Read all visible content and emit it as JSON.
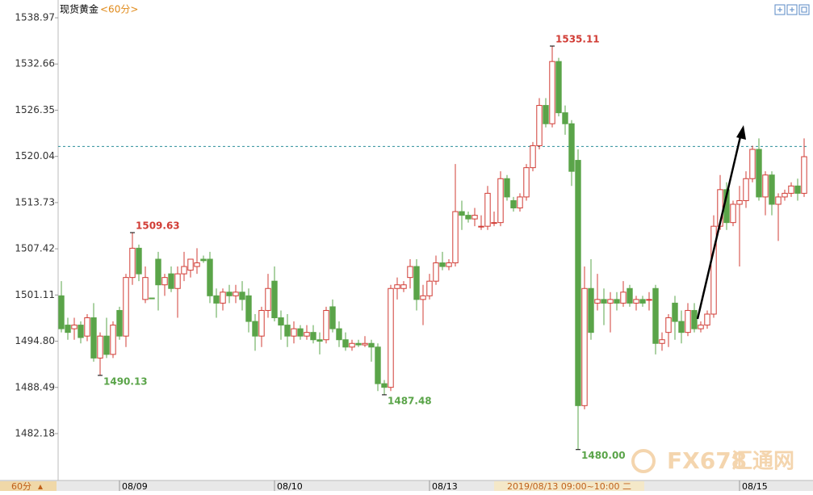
{
  "chart_data": {
    "type": "candlestick",
    "title": "现货黄金",
    "period": "<60分>",
    "period_button": "60分",
    "crosshair_label": "2019/08/13 09:00~10:00 二",
    "watermark": {
      "brand": "FX678",
      "name": "汇通网"
    },
    "up_color": "#d13c35",
    "down_color": "#5aa449",
    "grid": false,
    "ylim": [
      1475.78,
      1541.4
    ],
    "yticks": [
      1538.97,
      1532.66,
      1526.35,
      1520.04,
      1513.73,
      1507.42,
      1501.11,
      {
        "value": 1494.8,
        "label": "1494.80"
      },
      1488.49,
      1482.18
    ],
    "last_price": 1521.4,
    "annotations": [
      {
        "value": 1509.63,
        "label": "1509.63"
      },
      {
        "value": 1490.13,
        "label": "1490.13"
      },
      {
        "value": 1487.48,
        "label": "1487.48"
      },
      {
        "value": 1535.11,
        "label": "1535.11"
      },
      {
        "value": 1480,
        "label": "1480.00"
      }
    ],
    "categories": [
      null,
      null,
      null,
      null,
      null,
      null,
      null,
      null,
      null,
      null,
      null,
      "08/09",
      null,
      null,
      null,
      null,
      null,
      null,
      null,
      null,
      null,
      null,
      null,
      null,
      null,
      null,
      null,
      null,
      null,
      null,
      null,
      null,
      null,
      null,
      null,
      "08/10",
      null,
      null,
      null,
      null,
      null,
      null,
      null,
      null,
      null,
      null,
      null,
      null,
      null,
      null,
      null,
      null,
      null,
      null,
      null,
      null,
      null,
      null,
      null,
      "08/13",
      null,
      null,
      null,
      null,
      null,
      null,
      null,
      null,
      null,
      null,
      null,
      null,
      null,
      null,
      null,
      null,
      null,
      null,
      null,
      null,
      null,
      null,
      null,
      null,
      null,
      null,
      null,
      null,
      null,
      null,
      null,
      null,
      null,
      null,
      null,
      null,
      null,
      null,
      null,
      null,
      null,
      null,
      null,
      null,
      null,
      null,
      null,
      "08/15",
      null,
      null,
      null,
      null,
      null,
      null,
      null,
      null
    ],
    "open": [
      1501,
      1497,
      1496.5,
      1497,
      1495.5,
      1498,
      1492.5,
      1495.5,
      1493,
      1499,
      1495.5,
      1503.5,
      1507.5,
      1500.5,
      1500.7,
      1506,
      1502.5,
      1504,
      1502,
      1504,
      1504.5,
      1505,
      1506,
      1506,
      1501,
      1500,
      1501.5,
      1501,
      1501.5,
      1501,
      1497.5,
      1495.5,
      1499,
      1503,
      1498,
      1497,
      1495.5,
      1496.5,
      1495.5,
      1496,
      1495,
      1495,
      1499.5,
      1496.5,
      1495,
      1494,
      1494.5,
      1494.3,
      1494.5,
      1494,
      1489,
      1488.5,
      1502,
      1502,
      1503.5,
      1505,
      1500.5,
      1501,
      1503,
      1505.5,
      1505,
      1505.5,
      1512.5,
      1512,
      1511.5,
      1510.5,
      1510.5,
      1511,
      1511,
      1517,
      1514,
      1513,
      1514.5,
      1518.5,
      1521.5,
      1527,
      1524.5,
      1533,
      1526,
      1524.5,
      1519.5,
      1486,
      1502,
      1500,
      1500.5,
      1500,
      1500.5,
      1500,
      1502,
      1500,
      1500.5,
      1500.5,
      1502,
      1494.5,
      1496,
      1500,
      1497.5,
      1496,
      1499,
      1496.5,
      1497,
      1498.5,
      1510.5,
      1515.5,
      1511,
      1513.5,
      1514,
      1517,
      1521,
      1514.5,
      1517.5,
      1513.5,
      1514.5,
      1515,
      1516,
      1515
    ],
    "high": [
      1503,
      1498,
      1498,
      1497.5,
      1498.5,
      1500,
      1496,
      1498,
      1497.5,
      1499.5,
      1504,
      1509.63,
      1508,
      1505,
      1500.7,
      1507,
      1504,
      1505,
      1505,
      1507,
      1506,
      1507.5,
      1506.5,
      1507,
      1502,
      1502,
      1502.5,
      1502.5,
      1503,
      1502,
      1498.5,
      1499.5,
      1504,
      1505,
      1499,
      1498.5,
      1497.5,
      1497,
      1497,
      1497,
      1496,
      1499.5,
      1500.5,
      1497.5,
      1496,
      1495,
      1495,
      1495.5,
      1495,
      1494.5,
      1489.5,
      1502.5,
      1503.5,
      1503,
      1506,
      1506,
      1502.5,
      1504,
      1506.5,
      1507,
      1506,
      1519,
      1514,
      1512.5,
      1513,
      1512,
      1516,
      1512.5,
      1518,
      1517.5,
      1514.5,
      1515,
      1519,
      1522,
      1528,
      1528,
      1535.11,
      1533.5,
      1527,
      1525,
      1521,
      1505,
      1506,
      1504,
      1502,
      1501.5,
      1501.5,
      1503,
      1502.5,
      1501,
      1501,
      1501.5,
      1502.5,
      1496,
      1498.5,
      1501,
      1499,
      1500,
      1500,
      1497.5,
      1499,
      1512,
      1517.5,
      1516.5,
      1514,
      1516,
      1518,
      1521.5,
      1522.5,
      1518,
      1518,
      1515,
      1515.5,
      1516.5,
      1517,
      1522.5
    ],
    "low": [
      1496,
      1495,
      1495,
      1494.5,
      1494.8,
      1492,
      1490.13,
      1492.5,
      1492.5,
      1495,
      1494,
      1502.5,
      1503,
      1500,
      1500.6,
      1499,
      1501,
      1501.5,
      1498,
      1503,
      1503.5,
      1504,
      1505.5,
      1500,
      1498,
      1499,
      1500,
      1500,
      1499,
      1496,
      1493.5,
      1494,
      1498,
      1497.5,
      1495,
      1494,
      1494.5,
      1495,
      1495,
      1494.5,
      1493,
      1494.5,
      1496,
      1494,
      1493.5,
      1493.5,
      1494,
      1494,
      1492,
      1488,
      1487.48,
      1488,
      1500.5,
      1501.5,
      1502,
      1499,
      1497,
      1500.5,
      1502.5,
      1504.5,
      1504.5,
      1505,
      1510,
      1511,
      1510.5,
      1510,
      1510,
      1510.5,
      1510.5,
      1514,
      1512.5,
      1512.5,
      1514,
      1518,
      1521,
      1524,
      1524,
      1525.5,
      1523,
      1516,
      1480,
      1485.5,
      1495,
      1499,
      1497,
      1496,
      1499,
      1499.5,
      1499.5,
      1499,
      1499.5,
      1499,
      1493,
      1493.5,
      1494,
      1495,
      1494.5,
      1495.5,
      1496,
      1496,
      1496.5,
      1498,
      1510,
      1510,
      1510.5,
      1505,
      1513,
      1516.5,
      1514,
      1512,
      1512,
      1508.5,
      1514,
      1514.5,
      1514,
      1514.5
    ],
    "close": [
      1496.5,
      1496,
      1497,
      1495.3,
      1498,
      1492.5,
      1495.5,
      1493,
      1497,
      1495.5,
      1503.5,
      1507.5,
      1504,
      1503.5,
      1500.6,
      1502.5,
      1503.5,
      1502,
      1504,
      1505,
      1506,
      1505.5,
      1505.8,
      1501,
      1500,
      1501.5,
      1501,
      1501.5,
      1500.5,
      1497.5,
      1495.5,
      1499,
      1502,
      1498,
      1497,
      1495.5,
      1496.5,
      1495.5,
      1496,
      1495,
      1494.8,
      1499,
      1496.5,
      1495,
      1494,
      1494.5,
      1494.3,
      1494.5,
      1494,
      1489,
      1488.5,
      1502,
      1502.5,
      1502.5,
      1505,
      1500.5,
      1501,
      1503,
      1505.5,
      1505,
      1505.5,
      1512.5,
      1512,
      1511.5,
      1512,
      1510.5,
      1515,
      1511,
      1517,
      1514.5,
      1513,
      1514.5,
      1518.5,
      1521.5,
      1527,
      1524.5,
      1533,
      1526,
      1524.5,
      1518,
      1486,
      1502,
      1496,
      1500.5,
      1500,
      1500.5,
      1500,
      1501.5,
      1500,
      1500.5,
      1500,
      1500.5,
      1494.5,
      1495,
      1498,
      1497.5,
      1496,
      1499,
      1496.5,
      1497,
      1498.5,
      1510.5,
      1515.5,
      1511,
      1513.5,
      1514,
      1517,
      1521,
      1514.5,
      1517.5,
      1513.5,
      1514.5,
      1515,
      1516,
      1515,
      1520
    ]
  }
}
